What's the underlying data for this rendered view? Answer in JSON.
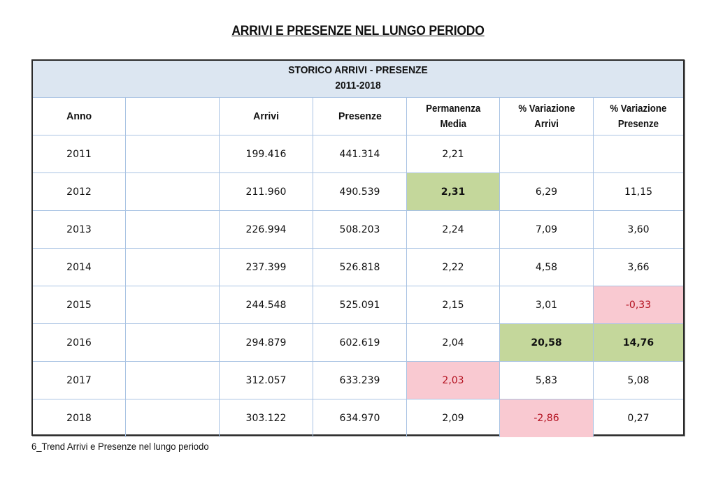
{
  "title": "ARRIVI E PRESENZE NEL LUNGO PERIODO",
  "table": {
    "band_title": "STORICO ARRIVI - PRESENZE",
    "band_subtitle": "2011-2018",
    "headers": [
      "Anno",
      "",
      "Arrivi",
      "Presenze",
      "Permanenza Media",
      "% Variazione Arrivi",
      "% Variazione Presenze"
    ],
    "header_lines": {
      "permanenza_1": "Permanenza",
      "permanenza_2": "Media",
      "var_arrivi_1": "% Variazione",
      "var_arrivi_2": "Arrivi",
      "var_presenze_1": "% Variazione",
      "var_presenze_2": "Presenze"
    },
    "rows": [
      {
        "anno": "2011",
        "blank": "",
        "arrivi": "199.416",
        "presenze": "441.314",
        "permanenza": "2,21",
        "var_arrivi": "",
        "var_presenze": ""
      },
      {
        "anno": "2012",
        "blank": "",
        "arrivi": "211.960",
        "presenze": "490.539",
        "permanenza": "2,31",
        "var_arrivi": "6,29",
        "var_presenze": "11,15"
      },
      {
        "anno": "2013",
        "blank": "",
        "arrivi": "226.994",
        "presenze": "508.203",
        "permanenza": "2,24",
        "var_arrivi": "7,09",
        "var_presenze": "3,60"
      },
      {
        "anno": "2014",
        "blank": "",
        "arrivi": "237.399",
        "presenze": "526.818",
        "permanenza": "2,22",
        "var_arrivi": "4,58",
        "var_presenze": "3,66"
      },
      {
        "anno": "2015",
        "blank": "",
        "arrivi": "244.548",
        "presenze": "525.091",
        "permanenza": "2,15",
        "var_arrivi": "3,01",
        "var_presenze": "-0,33"
      },
      {
        "anno": "2016",
        "blank": "",
        "arrivi": "294.879",
        "presenze": "602.619",
        "permanenza": "2,04",
        "var_arrivi": "20,58",
        "var_presenze": "14,76"
      },
      {
        "anno": "2017",
        "blank": "",
        "arrivi": "312.057",
        "presenze": "633.239",
        "permanenza": "2,03",
        "var_arrivi": "5,83",
        "var_presenze": "5,08"
      },
      {
        "anno": "2018",
        "blank": "",
        "arrivi": "303.122",
        "presenze": "634.970",
        "permanenza": "2,09",
        "var_arrivi": "-2,86",
        "var_presenze": "0,27"
      }
    ],
    "highlights": {
      "max_color": "#c4d79b",
      "min_color": "#f9c9d1",
      "min_text_color": "#b3101f"
    }
  },
  "caption": "6_Trend Arrivi e Presenze nel lungo periodo"
}
